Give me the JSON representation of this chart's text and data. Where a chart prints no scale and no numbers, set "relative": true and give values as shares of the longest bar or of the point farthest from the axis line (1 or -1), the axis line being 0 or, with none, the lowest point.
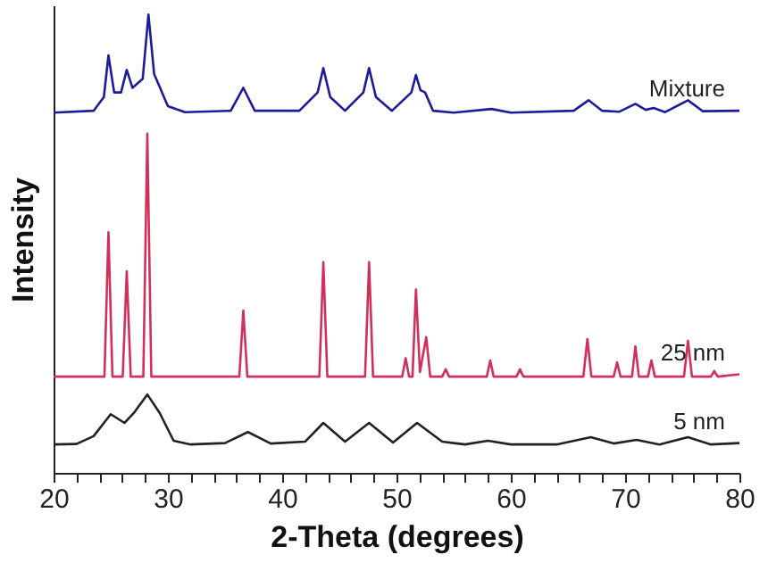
{
  "chart_data": {
    "type": "line",
    "relative": true,
    "xlabel": "2-Theta (degrees)",
    "ylabel": "Intensity",
    "xlim": [
      20,
      80
    ],
    "xticks": [
      20,
      {
        "value": 22,
        "label": null
      },
      {
        "value": 24,
        "label": null
      },
      {
        "value": 26,
        "label": null
      },
      {
        "value": 28,
        "label": null
      },
      30,
      {
        "value": 32,
        "label": null
      },
      {
        "value": 34,
        "label": null
      },
      {
        "value": 36,
        "label": null
      },
      {
        "value": 38,
        "label": null
      },
      40,
      {
        "value": 42,
        "label": null
      },
      {
        "value": 44,
        "label": null
      },
      {
        "value": 46,
        "label": null
      },
      {
        "value": 48,
        "label": null
      },
      50,
      {
        "value": 52,
        "label": null
      },
      {
        "value": 54,
        "label": null
      },
      {
        "value": 56,
        "label": null
      },
      {
        "value": 58,
        "label": null
      },
      60,
      {
        "value": 62,
        "label": null
      },
      {
        "value": 64,
        "label": null
      },
      {
        "value": 66,
        "label": null
      },
      {
        "value": 68,
        "label": null
      },
      70,
      {
        "value": 72,
        "label": null
      },
      {
        "value": 74,
        "label": null
      },
      {
        "value": 76,
        "label": null
      },
      {
        "value": 78,
        "label": null
      },
      80
    ],
    "grid": false,
    "legend": false,
    "marker": "none",
    "line_style": "solid",
    "series": [
      {
        "name": "Mixture",
        "color": "#1c1c9a",
        "x": [
          20,
          23.5,
          24.4,
          24.8,
          25.3,
          25.9,
          26.4,
          26.9,
          27.8,
          28.3,
          28.8,
          30,
          31.5,
          35.5,
          36.6,
          37.6,
          41.5,
          43.1,
          43.6,
          44.2,
          45.5,
          47.1,
          47.6,
          48.2,
          49.6,
          51.3,
          51.7,
          52.1,
          52.5,
          53.2,
          55,
          58.3,
          60,
          65.5,
          66.8,
          68,
          69.5,
          70.9,
          71.8,
          72.5,
          73.5,
          75.5,
          76.8,
          80
        ],
        "values": [
          0.786,
          0.79,
          0.82,
          0.911,
          0.83,
          0.83,
          0.879,
          0.84,
          0.86,
          1.0,
          0.87,
          0.8,
          0.787,
          0.79,
          0.84,
          0.79,
          0.79,
          0.83,
          0.883,
          0.82,
          0.79,
          0.83,
          0.883,
          0.82,
          0.79,
          0.83,
          0.868,
          0.835,
          0.83,
          0.79,
          0.786,
          0.794,
          0.786,
          0.79,
          0.813,
          0.79,
          0.788,
          0.805,
          0.792,
          0.796,
          0.787,
          0.813,
          0.789,
          0.79
        ]
      },
      {
        "name": "25 nm",
        "color": "#d0305a",
        "x": [
          20,
          24.45,
          24.8,
          25.15,
          26.05,
          26.4,
          26.75,
          27.85,
          28.2,
          28.55,
          36.25,
          36.6,
          36.95,
          43.25,
          43.6,
          43.95,
          47.25,
          47.6,
          47.95,
          50.5,
          50.8,
          51.1,
          51.4,
          51.7,
          52.05,
          52.6,
          52.95,
          54,
          54.3,
          54.6,
          57.9,
          58.2,
          58.5,
          60.5,
          60.8,
          61.1,
          66.35,
          66.7,
          67.05,
          69,
          69.3,
          69.6,
          70.6,
          70.9,
          71.2,
          72,
          72.3,
          72.6,
          75.15,
          75.5,
          75.85,
          77.5,
          77.8,
          78.1,
          80
        ],
        "values": [
          0.21,
          0.21,
          0.525,
          0.21,
          0.21,
          0.44,
          0.21,
          0.21,
          0.74,
          0.21,
          0.21,
          0.354,
          0.21,
          0.21,
          0.46,
          0.21,
          0.21,
          0.46,
          0.21,
          0.21,
          0.25,
          0.21,
          0.21,
          0.4,
          0.22,
          0.296,
          0.21,
          0.21,
          0.226,
          0.21,
          0.21,
          0.245,
          0.21,
          0.21,
          0.226,
          0.21,
          0.21,
          0.292,
          0.21,
          0.21,
          0.241,
          0.21,
          0.21,
          0.276,
          0.21,
          0.21,
          0.245,
          0.21,
          0.21,
          0.288,
          0.21,
          0.21,
          0.222,
          0.21,
          0.215
        ]
      },
      {
        "name": "5 nm",
        "color": "#222222",
        "x": [
          20,
          22,
          23.5,
          25,
          26.2,
          27,
          28.2,
          29.3,
          30.5,
          32,
          35,
          37,
          39,
          42,
          43.6,
          45.5,
          47.6,
          49.7,
          51.8,
          54,
          56,
          58,
          60,
          64,
          67,
          69,
          71,
          73,
          75.5,
          77.5,
          80
        ],
        "values": [
          0.062,
          0.063,
          0.08,
          0.128,
          0.109,
          0.13,
          0.171,
          0.13,
          0.07,
          0.062,
          0.065,
          0.089,
          0.064,
          0.068,
          0.109,
          0.068,
          0.109,
          0.066,
          0.109,
          0.068,
          0.062,
          0.07,
          0.062,
          0.062,
          0.078,
          0.064,
          0.072,
          0.062,
          0.078,
          0.062,
          0.065
        ]
      }
    ]
  }
}
